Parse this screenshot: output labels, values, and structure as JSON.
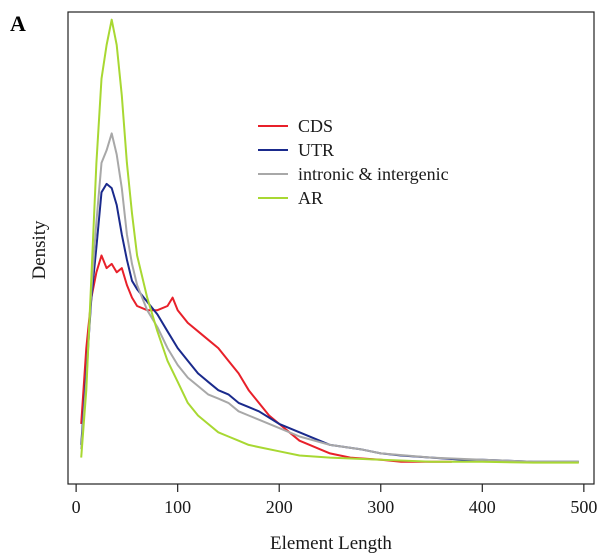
{
  "panel_label": "A",
  "chart_data": {
    "type": "line",
    "xlabel": "Element Length",
    "ylabel": "Density",
    "xlim": [
      -8,
      510
    ],
    "ylim": [
      0,
      1.0
    ],
    "y_ticks_shown": false,
    "x_ticks": [
      0,
      100,
      200,
      300,
      400,
      500
    ],
    "x_tick_labels": [
      "0",
      "100",
      "200",
      "300",
      "400",
      "500"
    ],
    "legend_position": "upper-center",
    "series": [
      {
        "name": "CDS",
        "color": "#e8202a",
        "x": [
          5,
          10,
          15,
          20,
          25,
          30,
          35,
          40,
          45,
          50,
          55,
          60,
          70,
          80,
          90,
          95,
          100,
          110,
          120,
          130,
          140,
          150,
          160,
          170,
          180,
          190,
          200,
          210,
          220,
          230,
          240,
          250,
          260,
          270,
          280,
          300,
          320,
          350,
          370
        ],
        "y": [
          0.1,
          0.28,
          0.4,
          0.46,
          0.5,
          0.47,
          0.48,
          0.46,
          0.47,
          0.43,
          0.4,
          0.38,
          0.37,
          0.37,
          0.38,
          0.4,
          0.37,
          0.34,
          0.32,
          0.3,
          0.28,
          0.25,
          0.22,
          0.18,
          0.15,
          0.12,
          0.1,
          0.08,
          0.06,
          0.05,
          0.04,
          0.03,
          0.025,
          0.02,
          0.018,
          0.015,
          0.01,
          0.01,
          0.01
        ]
      },
      {
        "name": "UTR",
        "color": "#1a2a8c",
        "x": [
          5,
          10,
          15,
          20,
          25,
          30,
          35,
          40,
          45,
          50,
          55,
          60,
          70,
          80,
          90,
          100,
          110,
          120,
          130,
          140,
          150,
          160,
          170,
          180,
          200,
          220,
          250,
          280,
          300,
          320,
          350,
          380,
          400,
          450,
          495
        ],
        "y": [
          0.05,
          0.22,
          0.4,
          0.52,
          0.65,
          0.67,
          0.66,
          0.62,
          0.55,
          0.49,
          0.44,
          0.42,
          0.39,
          0.36,
          0.32,
          0.28,
          0.25,
          0.22,
          0.2,
          0.18,
          0.17,
          0.15,
          0.14,
          0.13,
          0.1,
          0.08,
          0.05,
          0.04,
          0.03,
          0.025,
          0.02,
          0.015,
          0.015,
          0.01,
          0.01
        ]
      },
      {
        "name": "intronic & intergenic",
        "color": "#a8a8a8",
        "x": [
          5,
          10,
          15,
          20,
          25,
          30,
          35,
          40,
          45,
          50,
          55,
          60,
          70,
          80,
          90,
          100,
          110,
          120,
          130,
          140,
          150,
          160,
          170,
          180,
          200,
          220,
          250,
          280,
          300,
          350,
          400,
          450,
          495
        ],
        "y": [
          0.04,
          0.2,
          0.42,
          0.58,
          0.72,
          0.75,
          0.79,
          0.74,
          0.66,
          0.55,
          0.48,
          0.43,
          0.37,
          0.33,
          0.28,
          0.24,
          0.21,
          0.19,
          0.17,
          0.16,
          0.15,
          0.13,
          0.12,
          0.11,
          0.09,
          0.07,
          0.05,
          0.04,
          0.03,
          0.02,
          0.015,
          0.01,
          0.01
        ]
      },
      {
        "name": "AR",
        "color": "#a8d832",
        "x": [
          5,
          10,
          15,
          20,
          25,
          30,
          35,
          40,
          45,
          50,
          55,
          60,
          70,
          80,
          90,
          100,
          110,
          120,
          130,
          140,
          150,
          160,
          170,
          180,
          200,
          220,
          250,
          300,
          350,
          400,
          450,
          495
        ],
        "y": [
          0.02,
          0.18,
          0.45,
          0.72,
          0.92,
          1.0,
          1.06,
          1.0,
          0.88,
          0.72,
          0.6,
          0.5,
          0.4,
          0.32,
          0.25,
          0.2,
          0.15,
          0.12,
          0.1,
          0.08,
          0.07,
          0.06,
          0.05,
          0.045,
          0.035,
          0.025,
          0.02,
          0.015,
          0.01,
          0.01,
          0.008,
          0.008
        ]
      }
    ]
  }
}
